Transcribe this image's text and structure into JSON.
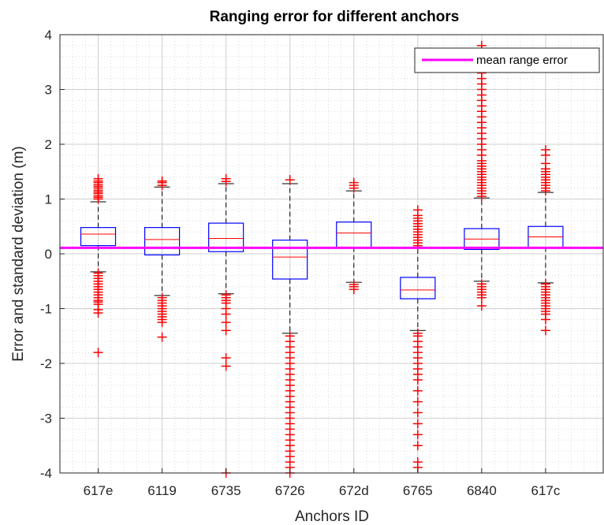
{
  "chart_data": {
    "type": "boxplot",
    "title": "Ranging error for different anchors",
    "xlabel": "Anchors ID",
    "ylabel": "Error and standard deviation (m)",
    "ylim": [
      -4,
      4
    ],
    "yticks": [
      "-4",
      "-3",
      "-2",
      "-1",
      "0",
      "1",
      "2",
      "3",
      "4"
    ],
    "grid": "on, with minor grid",
    "legend": {
      "position": "top-right",
      "entries": [
        "mean range error"
      ]
    },
    "mean_range_error": 0.11,
    "categories": [
      "617e",
      "6119",
      "6735",
      "6726",
      "672d",
      "6765",
      "6840",
      "617c"
    ],
    "boxes": [
      {
        "id": "617e",
        "q1": 0.15,
        "median": 0.36,
        "q3": 0.48,
        "whisker_low": -0.33,
        "whisker_high": 0.95,
        "outliers_high": [
          1.0,
          1.03,
          1.06,
          1.1,
          1.13,
          1.16,
          1.2,
          1.23,
          1.26,
          1.3,
          1.33,
          1.37
        ],
        "outliers_low": [
          -0.35,
          -0.4,
          -0.45,
          -0.5,
          -0.55,
          -0.6,
          -0.65,
          -0.7,
          -0.75,
          -0.8,
          -0.85,
          -0.88,
          -0.92,
          -1.02,
          -1.08,
          -1.8
        ]
      },
      {
        "id": "6119",
        "q1": -0.02,
        "median": 0.26,
        "q3": 0.48,
        "whisker_low": -0.76,
        "whisker_high": 1.22,
        "outliers_high": [
          1.25,
          1.3,
          1.33
        ],
        "outliers_low": [
          -0.8,
          -0.85,
          -0.9,
          -0.95,
          -1.0,
          -1.05,
          -1.1,
          -1.15,
          -1.2,
          -1.25,
          -1.52
        ]
      },
      {
        "id": "6735",
        "q1": 0.04,
        "median": 0.28,
        "q3": 0.56,
        "whisker_low": -0.73,
        "whisker_high": 1.28,
        "outliers_high": [
          1.32,
          1.37
        ],
        "outliers_low": [
          -0.75,
          -0.8,
          -0.85,
          -0.9,
          -1.0,
          -1.1,
          -1.25,
          -1.4,
          -1.9,
          -2.05,
          -4.0
        ]
      },
      {
        "id": "6726",
        "q1": -0.46,
        "median": -0.06,
        "q3": 0.25,
        "whisker_low": -1.45,
        "whisker_high": 1.28,
        "outliers_high": [
          1.35
        ],
        "outliers_low": [
          -1.5,
          -1.6,
          -1.7,
          -1.8,
          -1.9,
          -2.0,
          -2.1,
          -2.2,
          -2.3,
          -2.4,
          -2.5,
          -2.6,
          -2.7,
          -2.8,
          -2.9,
          -3.0,
          -3.1,
          -3.2,
          -3.3,
          -3.4,
          -3.5,
          -3.6,
          -3.7,
          -3.8,
          -3.9,
          -4.0
        ]
      },
      {
        "id": "672d",
        "q1": 0.12,
        "median": 0.38,
        "q3": 0.58,
        "whisker_low": -0.52,
        "whisker_high": 1.15,
        "outliers_high": [
          1.2,
          1.25,
          1.3
        ],
        "outliers_low": [
          -0.56,
          -0.6,
          -0.65
        ]
      },
      {
        "id": "6765",
        "q1": -0.82,
        "median": -0.66,
        "q3": -0.43,
        "whisker_low": -1.4,
        "whisker_high": 0.12,
        "outliers_high": [
          0.15,
          0.2,
          0.25,
          0.3,
          0.35,
          0.4,
          0.45,
          0.5,
          0.55,
          0.6,
          0.65,
          0.7,
          0.8
        ],
        "outliers_low": [
          -1.45,
          -1.5,
          -1.6,
          -1.7,
          -1.8,
          -1.9,
          -2.0,
          -2.1,
          -2.2,
          -2.3,
          -2.5,
          -2.7,
          -2.9,
          -3.1,
          -3.3,
          -3.5,
          -3.8,
          -3.9
        ]
      },
      {
        "id": "6840",
        "q1": 0.08,
        "median": 0.27,
        "q3": 0.46,
        "whisker_low": -0.5,
        "whisker_high": 1.02,
        "outliers_high": [
          1.05,
          1.1,
          1.15,
          1.2,
          1.25,
          1.3,
          1.35,
          1.4,
          1.45,
          1.5,
          1.55,
          1.6,
          1.65,
          1.7,
          1.8,
          1.9,
          2.0,
          2.1,
          2.2,
          2.3,
          2.4,
          2.5,
          2.6,
          2.7,
          2.8,
          2.9,
          3.0,
          3.1,
          3.2,
          3.3,
          3.4,
          3.5,
          3.6,
          3.7,
          3.8
        ],
        "outliers_low": [
          -0.55,
          -0.6,
          -0.65,
          -0.7,
          -0.75,
          -0.8,
          -0.95
        ]
      },
      {
        "id": "617c",
        "q1": 0.12,
        "median": 0.31,
        "q3": 0.5,
        "whisker_low": -0.53,
        "whisker_high": 1.12,
        "outliers_high": [
          1.15,
          1.2,
          1.25,
          1.3,
          1.35,
          1.4,
          1.45,
          1.5,
          1.55,
          1.65,
          1.8,
          1.9
        ],
        "outliers_low": [
          -0.55,
          -0.6,
          -0.65,
          -0.7,
          -0.75,
          -0.8,
          -0.85,
          -0.9,
          -0.95,
          -1.0,
          -1.05,
          -1.1,
          -1.2,
          -1.4
        ]
      }
    ],
    "colors": {
      "box": "#0000ff",
      "median": "#ff0000",
      "whisker": "#000000",
      "outlier": "#ff0000",
      "mean_line": "#ff00ff",
      "grid": "#d9d9d9"
    }
  }
}
